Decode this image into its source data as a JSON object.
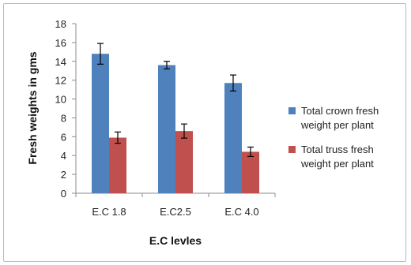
{
  "chart_data": {
    "type": "bar",
    "title": "",
    "xlabel": "E.C levles",
    "ylabel": "Fresh weights in gms",
    "categories": [
      "E.C 1.8",
      "E.C2.5",
      "E.C 4.0"
    ],
    "ylim": [
      0,
      18
    ],
    "yticks": [
      0,
      2,
      4,
      6,
      8,
      10,
      12,
      14,
      16,
      18
    ],
    "grid": false,
    "legend_position": "right",
    "series": [
      {
        "name": "Total crown fresh weight per plant",
        "color": "#4f81bd",
        "values": [
          14.8,
          13.6,
          11.7
        ],
        "errors": [
          1.1,
          0.4,
          0.85
        ]
      },
      {
        "name": "Total truss fresh weight per plant",
        "color": "#c0504d",
        "values": [
          5.9,
          6.6,
          4.4
        ],
        "errors": [
          0.6,
          0.75,
          0.5
        ]
      }
    ],
    "legend": [
      [
        "Total crown fresh",
        "weight per plant"
      ],
      [
        "Total truss fresh",
        "weight per plant"
      ]
    ]
  }
}
